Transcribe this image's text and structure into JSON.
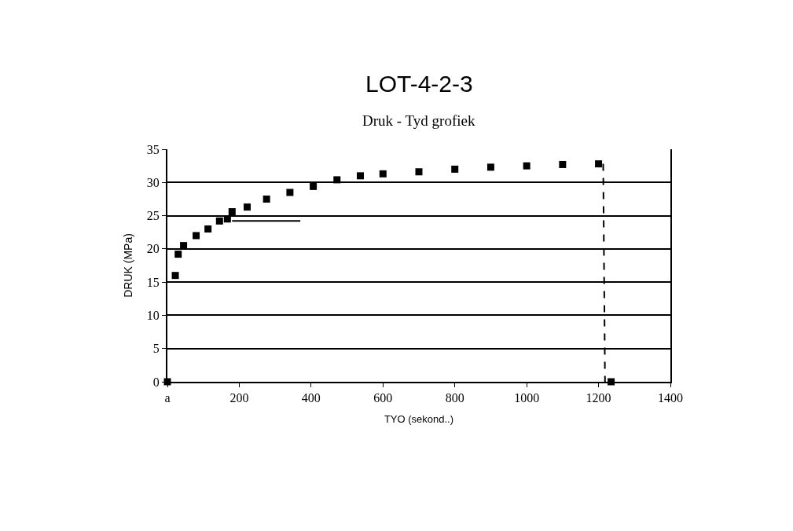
{
  "chart_data": {
    "type": "scatter",
    "title": "LOT-4-2-3",
    "subtitle": "Druk - Tyd grofiek",
    "xlabel": "TYO (sekond..)",
    "ylabel": "DRUK (MPa)",
    "xlim": [
      0,
      1400
    ],
    "ylim": [
      0,
      35
    ],
    "xticks": [
      {
        "value": 0,
        "label": "a"
      },
      200,
      400,
      600,
      800,
      1000,
      1200,
      1400
    ],
    "yticks": [
      0,
      5,
      10,
      15,
      20,
      25,
      30,
      35
    ],
    "grid": "y",
    "series": [
      {
        "marker": "square",
        "color": "#000000",
        "x": [
          0,
          22,
          30,
          45,
          80,
          113,
          145,
          167,
          180,
          222,
          276,
          341,
          406,
          472,
          537,
          600,
          700,
          800,
          900,
          1000,
          1100,
          1200,
          1235
        ],
        "values": [
          0,
          16,
          19.2,
          20.5,
          22,
          23,
          24.2,
          24.5,
          25.6,
          26.3,
          27.5,
          28.5,
          29.4,
          30.4,
          31,
          31.3,
          31.6,
          32,
          32.3,
          32.5,
          32.7,
          32.8,
          0
        ]
      },
      {
        "type": "line",
        "line_style": "dashed",
        "color": "#000000",
        "x": [
          1213,
          1218
        ],
        "values": [
          32.8,
          0
        ]
      },
      {
        "type": "line",
        "line_style": "solid",
        "color": "#000000",
        "x": [
          180,
          370
        ],
        "values": [
          24.2,
          24.2
        ]
      }
    ]
  }
}
